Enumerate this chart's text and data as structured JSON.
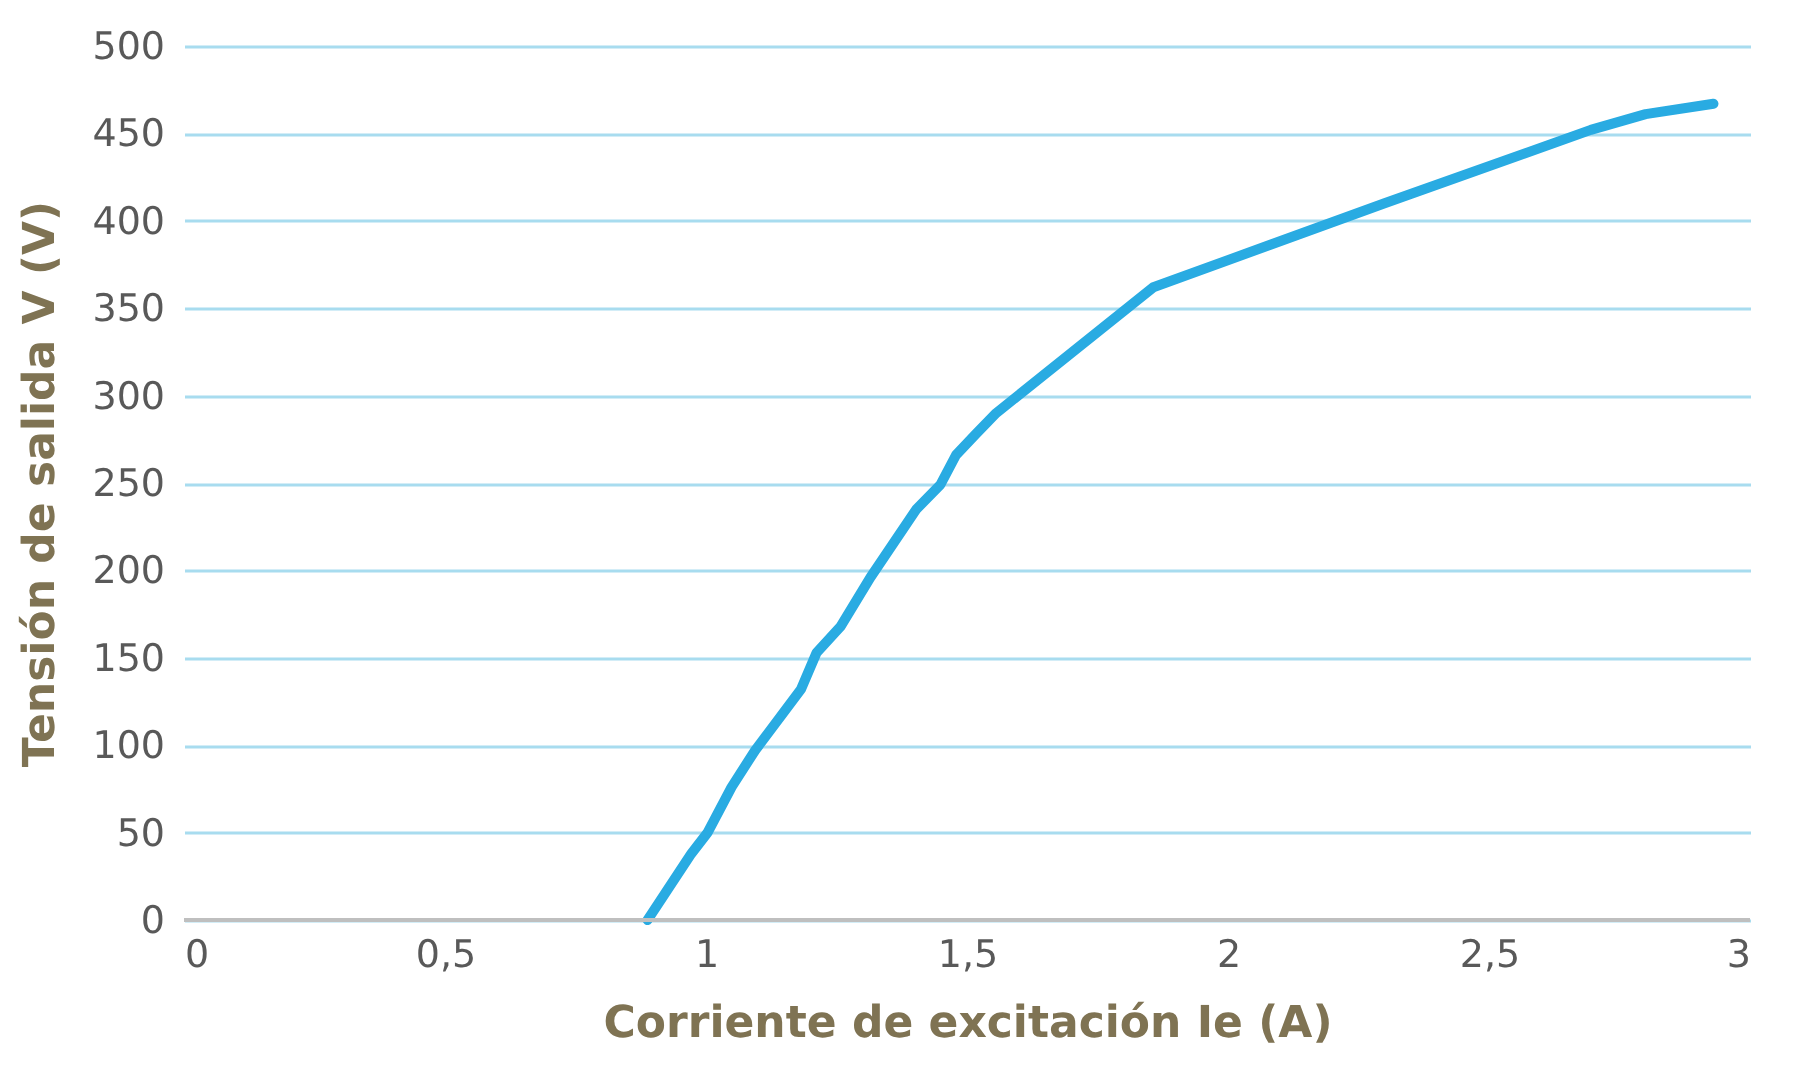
{
  "chart_data": {
    "type": "line",
    "xlabel": "Corriente de excitación Ie (A)",
    "ylabel": "Tensión de salida V (V)",
    "x": [
      0.888,
      0.972,
      1.003,
      1.049,
      1.094,
      1.182,
      1.212,
      1.258,
      1.315,
      1.403,
      1.449,
      1.479,
      1.517,
      1.556,
      1.857,
      2.3,
      2.695,
      2.8,
      2.93
    ],
    "series": [
      {
        "color": "#29abe2",
        "values": [
          0,
          38,
          50,
          76,
          97,
          132,
          153,
          168,
          196,
          235,
          249,
          266,
          278,
          290,
          362,
          410,
          452,
          461,
          467
        ]
      }
    ],
    "xlim": [
      0,
      3
    ],
    "xticks": [
      0,
      {
        "value": 0.5,
        "label": "0,5"
      },
      1,
      {
        "value": 1.5,
        "label": "1,5"
      },
      2,
      {
        "value": 2.5,
        "label": "2,5"
      },
      3
    ],
    "ylim": [
      0,
      500
    ],
    "yticks": [
      0,
      50,
      100,
      150,
      200,
      250,
      300,
      350,
      400,
      450,
      500
    ],
    "grid": "y",
    "marker": "none",
    "line_style": "solid"
  }
}
